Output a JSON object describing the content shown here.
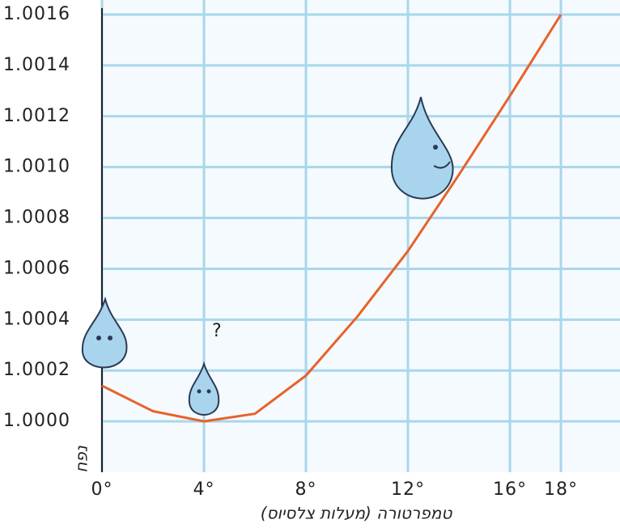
{
  "chart_data": {
    "type": "line",
    "x_label": "טמפרטורה (מעלות צלסיוס)",
    "y_label": "נפח",
    "x": [
      0,
      2,
      4,
      6,
      8,
      10,
      12,
      14,
      16,
      18
    ],
    "series": [
      {
        "color": "#e8622a",
        "values": [
          1.00014,
          1.00004,
          1.0,
          1.00003,
          1.00018,
          1.00041,
          1.00067,
          1.00097,
          1.00128,
          1.0016
        ]
      }
    ],
    "xlim": [
      0,
      20
    ],
    "ylim": [
      0.9998,
      1.0016
    ],
    "xticks": [
      {
        "value": 0,
        "label": "0°"
      },
      {
        "value": 4,
        "label": "4°"
      },
      {
        "value": 8,
        "label": "8°"
      },
      {
        "value": 12,
        "label": "12°"
      },
      {
        "value": 16,
        "label": "16°"
      },
      {
        "value": 18,
        "label": "18°"
      }
    ],
    "yticks": [
      {
        "value": 1,
        "label": "1.0000"
      },
      1.0002,
      1.0004,
      1.0006,
      1.0008,
      {
        "value": 1.001,
        "label": "1.0010"
      },
      1.0012,
      1.0014,
      1.0016
    ],
    "grid": true
  }
}
